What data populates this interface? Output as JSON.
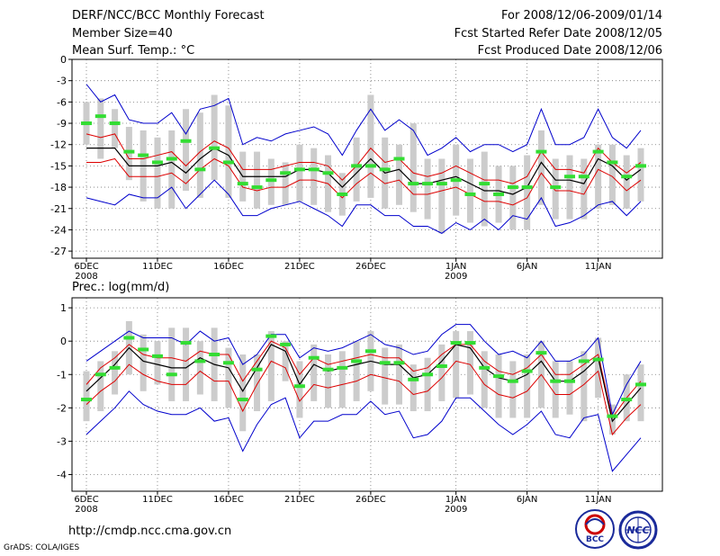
{
  "header": {
    "title": "DERF/NCC/BCC Monthly Forecast",
    "member_size": "Member Size=40",
    "variable": "Mean Surf. Temp.: °C",
    "period": "For 2008/12/06-2009/01/14",
    "fcst_started": "Fcst Started Refer Date 2008/12/05",
    "fcst_produced": "Fcst Produced Date 2008/12/06"
  },
  "footer": {
    "url": "http://cmdp.ncc.cma.gov.cn",
    "credit": "GrADS: COLA/IGES",
    "logo_bcc_text": "BCC",
    "logo_ncc_text": "NCC"
  },
  "colors": {
    "envelope": "#0000cc",
    "spread": "#dd0000",
    "mean": "#000000",
    "box": "#cccccc",
    "marker": "#33dd33",
    "grid": "#777777"
  },
  "chart_data": [
    {
      "type": "line",
      "title": "Mean Surf. Temp.: °C",
      "ylabel": "°C",
      "ylim": [
        -28,
        0
      ],
      "yticks": [
        0,
        -3,
        -6,
        -9,
        -12,
        -15,
        -18,
        -21,
        -24,
        -27
      ],
      "x_ticks": [
        {
          "label": "6DEC",
          "sub": "2008",
          "day": 0
        },
        {
          "label": "11DEC",
          "sub": "",
          "day": 5
        },
        {
          "label": "16DEC",
          "sub": "",
          "day": 10
        },
        {
          "label": "21DEC",
          "sub": "",
          "day": 15
        },
        {
          "label": "26DEC",
          "sub": "",
          "day": 20
        },
        {
          "label": "1JAN",
          "sub": "2009",
          "day": 26
        },
        {
          "label": "6JAN",
          "sub": "",
          "day": 31
        },
        {
          "label": "11JAN",
          "sub": "",
          "day": 36
        }
      ],
      "grid": true,
      "series": [
        {
          "name": "max",
          "values": [
            -3.5,
            -6,
            -5,
            -8.5,
            -9,
            -9,
            -7.5,
            -10.5,
            -7,
            -6.5,
            -5.5,
            -12,
            -11,
            -11.5,
            -10.5,
            -10,
            -9.5,
            -10.5,
            -13.5,
            -10,
            -7,
            -10,
            -8.5,
            -10,
            -13.5,
            -12.5,
            -11,
            -13,
            -12,
            -12,
            -13,
            -12,
            -7,
            -12,
            -12,
            -11,
            -7,
            -11,
            -12.5,
            -10
          ]
        },
        {
          "name": "upper",
          "values": [
            -10.5,
            -11,
            -10.5,
            -14,
            -14,
            -13.5,
            -13,
            -15,
            -13,
            -11.5,
            -12.5,
            -15.5,
            -15.5,
            -15.5,
            -15,
            -14.5,
            -14.5,
            -15,
            -17,
            -15,
            -12.5,
            -14.5,
            -14,
            -16,
            -16.5,
            -16,
            -15,
            -16,
            -17,
            -17,
            -17.5,
            -16.5,
            -13,
            -15.5,
            -15.5,
            -16,
            -12.5,
            -14.5,
            -16,
            -14.5
          ]
        },
        {
          "name": "mean",
          "values": [
            -12.5,
            -12.5,
            -12.5,
            -15,
            -15,
            -15,
            -14.5,
            -16,
            -14,
            -12.5,
            -13.5,
            -16.5,
            -16.5,
            -16.5,
            -16.5,
            -15.5,
            -15.5,
            -16,
            -18,
            -16,
            -14,
            -16,
            -15.5,
            -17.5,
            -17.5,
            -17,
            -16.5,
            -17.5,
            -18.5,
            -18.5,
            -19,
            -18,
            -14.5,
            -17,
            -17,
            -17.5,
            -14,
            -15,
            -17,
            -15.5
          ]
        },
        {
          "name": "lower",
          "values": [
            -14.5,
            -14.5,
            -14,
            -16.5,
            -16.5,
            -16.5,
            -16,
            -17.5,
            -15.5,
            -14,
            -15,
            -18,
            -18.5,
            -18,
            -18,
            -17,
            -17,
            -17.5,
            -19.5,
            -17.5,
            -16,
            -17.5,
            -17,
            -19,
            -19,
            -18.5,
            -18,
            -19,
            -20,
            -20,
            -20.5,
            -19.5,
            -16,
            -18.5,
            -18.5,
            -19,
            -15.5,
            -16.5,
            -18.5,
            -17
          ]
        },
        {
          "name": "min",
          "values": [
            -19.5,
            -20,
            -20.5,
            -19,
            -19.5,
            -19.5,
            -18,
            -21,
            -19,
            -17,
            -19,
            -22,
            -22,
            -21,
            -20.5,
            -20,
            -21,
            -22,
            -23.5,
            -20.5,
            -20.5,
            -22,
            -22,
            -23.5,
            -23.5,
            -24.5,
            -23,
            -24,
            -22.5,
            -24,
            -22,
            -22.5,
            -19.5,
            -23.5,
            -23,
            -22,
            -20.5,
            -20,
            -22,
            -20
          ]
        },
        {
          "name": "observed",
          "values": [
            -9,
            -8,
            -9,
            -13,
            -13.5,
            -14.5,
            -14,
            -11.5,
            -15.5,
            -12.5,
            -14.5,
            -17.5,
            -18,
            -17,
            -16,
            -15.5,
            -15.5,
            -16,
            -19,
            -15,
            -15,
            -15.5,
            -14,
            -17.5,
            -17.5,
            -17.5,
            -17,
            -19,
            -17.5,
            -19,
            -18,
            -18,
            -13,
            -18,
            -16.5,
            -16.5,
            -13,
            -14.5,
            -16.5,
            -15
          ]
        }
      ],
      "box_ranges": [
        [
          -6,
          -12
        ],
        [
          -5.5,
          -14
        ],
        [
          -7,
          -12.5
        ],
        [
          -9.5,
          -17
        ],
        [
          -10,
          -20
        ],
        [
          -11,
          -21
        ],
        [
          -10,
          -21
        ],
        [
          -7,
          -18.5
        ],
        [
          -7.5,
          -19.5
        ],
        [
          -5,
          -17
        ],
        [
          -6.5,
          -19.5
        ],
        [
          -13,
          -20
        ],
        [
          -13,
          -21
        ],
        [
          -14,
          -20.5
        ],
        [
          -14.5,
          -20.5
        ],
        [
          -12,
          -20
        ],
        [
          -12.5,
          -20.5
        ],
        [
          -13.5,
          -21.5
        ],
        [
          -16,
          -22
        ],
        [
          -11,
          -20
        ],
        [
          -5,
          -19.5
        ],
        [
          -11,
          -21
        ],
        [
          -12,
          -20.5
        ],
        [
          -9,
          -21.5
        ],
        [
          -14,
          -22.5
        ],
        [
          -14,
          -24.5
        ],
        [
          -12,
          -22
        ],
        [
          -14,
          -23
        ],
        [
          -13,
          -23.5
        ],
        [
          -15,
          -23
        ],
        [
          -15,
          -24
        ],
        [
          -13.5,
          -24
        ],
        [
          -10,
          -20.5
        ],
        [
          -14,
          -22.5
        ],
        [
          -13.5,
          -22.5
        ],
        [
          -14,
          -22.5
        ],
        [
          -12,
          -21
        ],
        [
          -12,
          -20.5
        ],
        [
          -13.5,
          -21
        ],
        [
          -12.5,
          -20
        ]
      ]
    },
    {
      "type": "line",
      "title": "Prec.: log(mm/d)",
      "ylabel": "log(mm/d)",
      "ylim": [
        -4.5,
        1.3
      ],
      "yticks": [
        1,
        0,
        -1,
        -2,
        -3,
        -4
      ],
      "x_ticks": [
        {
          "label": "6DEC",
          "sub": "2008",
          "day": 0
        },
        {
          "label": "11DEC",
          "sub": "",
          "day": 5
        },
        {
          "label": "16DEC",
          "sub": "",
          "day": 10
        },
        {
          "label": "21DEC",
          "sub": "",
          "day": 15
        },
        {
          "label": "26DEC",
          "sub": "",
          "day": 20
        },
        {
          "label": "1JAN",
          "sub": "2009",
          "day": 26
        },
        {
          "label": "6JAN",
          "sub": "",
          "day": 31
        },
        {
          "label": "11JAN",
          "sub": "",
          "day": 36
        }
      ],
      "grid": true,
      "series": [
        {
          "name": "max",
          "values": [
            -0.6,
            -0.3,
            0,
            0.3,
            0.1,
            0.1,
            0.1,
            -0.1,
            0.3,
            0,
            0.1,
            -0.7,
            -0.4,
            0.2,
            0.2,
            -0.5,
            -0.2,
            -0.3,
            -0.2,
            0,
            0.2,
            -0.1,
            -0.2,
            -0.4,
            -0.3,
            0.2,
            0.5,
            0.5,
            0,
            -0.4,
            -0.3,
            -0.5,
            0,
            -0.6,
            -0.6,
            -0.4,
            0.1,
            -2.2,
            -1.3,
            -0.6
          ]
        },
        {
          "name": "upper",
          "values": [
            -1.3,
            -0.8,
            -0.5,
            -0.1,
            -0.4,
            -0.5,
            -0.5,
            -0.6,
            -0.3,
            -0.4,
            -0.4,
            -1.2,
            -0.6,
            0,
            -0.2,
            -1,
            -0.5,
            -0.7,
            -0.6,
            -0.5,
            -0.4,
            -0.5,
            -0.5,
            -0.9,
            -0.8,
            -0.4,
            -0.1,
            -0.1,
            -0.6,
            -0.9,
            -1,
            -0.8,
            -0.4,
            -1,
            -1,
            -0.7,
            -0.4,
            -2.3,
            -1.7,
            -1.2
          ]
        },
        {
          "name": "mean",
          "values": [
            -1.5,
            -1.1,
            -0.7,
            -0.2,
            -0.6,
            -0.7,
            -0.8,
            -0.8,
            -0.5,
            -0.7,
            -0.8,
            -1.5,
            -0.8,
            -0.1,
            -0.3,
            -1.3,
            -0.7,
            -0.9,
            -0.8,
            -0.7,
            -0.6,
            -0.7,
            -0.7,
            -1.1,
            -1,
            -0.6,
            -0.1,
            -0.2,
            -0.8,
            -1.1,
            -1.2,
            -1,
            -0.6,
            -1.2,
            -1.2,
            -0.9,
            -0.5,
            -2.4,
            -1.9,
            -1.4
          ]
        },
        {
          "name": "lower",
          "values": [
            -1.9,
            -1.5,
            -1.2,
            -0.7,
            -1,
            -1.2,
            -1.3,
            -1.3,
            -0.9,
            -1.2,
            -1.2,
            -2.1,
            -1.3,
            -0.6,
            -0.8,
            -1.8,
            -1.3,
            -1.4,
            -1.3,
            -1.2,
            -1,
            -1.1,
            -1.2,
            -1.6,
            -1.5,
            -1.1,
            -0.6,
            -0.7,
            -1.3,
            -1.6,
            -1.7,
            -1.5,
            -1,
            -1.6,
            -1.6,
            -1.3,
            -0.9,
            -2.8,
            -2.3,
            -1.9
          ]
        },
        {
          "name": "min",
          "values": [
            -2.8,
            -2.4,
            -2,
            -1.5,
            -1.9,
            -2.1,
            -2.2,
            -2.2,
            -2,
            -2.4,
            -2.3,
            -3.3,
            -2.5,
            -1.9,
            -1.7,
            -2.9,
            -2.4,
            -2.4,
            -2.2,
            -2.2,
            -1.8,
            -2.2,
            -2.1,
            -2.9,
            -2.8,
            -2.4,
            -1.7,
            -1.7,
            -2.1,
            -2.5,
            -2.8,
            -2.5,
            -2.1,
            -2.8,
            -2.9,
            -2.3,
            -2.2,
            -3.9,
            -3.4,
            -2.9
          ]
        },
        {
          "name": "observed",
          "values": [
            -1.75,
            -1,
            -0.8,
            0.1,
            -0.25,
            -0.45,
            -1,
            -0.05,
            -0.6,
            -0.4,
            -0.65,
            -1.75,
            -0.85,
            0.15,
            -0.1,
            -1.35,
            -0.5,
            -0.85,
            -0.8,
            -0.6,
            -0.3,
            -0.65,
            -0.65,
            -1.15,
            -1,
            -0.75,
            -0.05,
            -0.05,
            -0.8,
            -1.05,
            -1.2,
            -0.9,
            -0.35,
            -1.2,
            -1.2,
            -0.6,
            -0.55,
            -2.25,
            -1.75,
            -1.3
          ]
        }
      ],
      "box_ranges": [
        [
          -0.9,
          -2.4
        ],
        [
          -0.6,
          -2.1
        ],
        [
          -0.3,
          -1.6
        ],
        [
          0.6,
          -1
        ],
        [
          0.2,
          -1.5
        ],
        [
          0,
          -1.3
        ],
        [
          0.4,
          -1.8
        ],
        [
          0.4,
          -1.8
        ],
        [
          0,
          -1.6
        ],
        [
          0.4,
          -1.8
        ],
        [
          -0.2,
          -2
        ],
        [
          -0.4,
          -2.7
        ],
        [
          -0.4,
          -2.1
        ],
        [
          0.3,
          -1.8
        ],
        [
          0,
          -1.2
        ],
        [
          -0.6,
          -2.3
        ],
        [
          -0.1,
          -1.8
        ],
        [
          -0.4,
          -2
        ],
        [
          -0.3,
          -2
        ],
        [
          0,
          -1.8
        ],
        [
          0.3,
          -1.5
        ],
        [
          -0.2,
          -1.9
        ],
        [
          -0.1,
          -1.9
        ],
        [
          -0.7,
          -2.1
        ],
        [
          -0.5,
          -2.1
        ],
        [
          -0.1,
          -1.8
        ],
        [
          0.3,
          -1.7
        ],
        [
          0.3,
          -1.6
        ],
        [
          -0.3,
          -2
        ],
        [
          -0.4,
          -2.3
        ],
        [
          -0.6,
          -2.3
        ],
        [
          -0.4,
          -2.3
        ],
        [
          0,
          -2
        ],
        [
          -0.6,
          -2.3
        ],
        [
          -0.6,
          -2.2
        ],
        [
          -0.3,
          -2.4
        ],
        [
          0.1,
          -1.7
        ],
        [
          -1.9,
          -2.8
        ],
        [
          -1,
          -2.4
        ],
        [
          -0.7,
          -2.4
        ]
      ]
    }
  ]
}
